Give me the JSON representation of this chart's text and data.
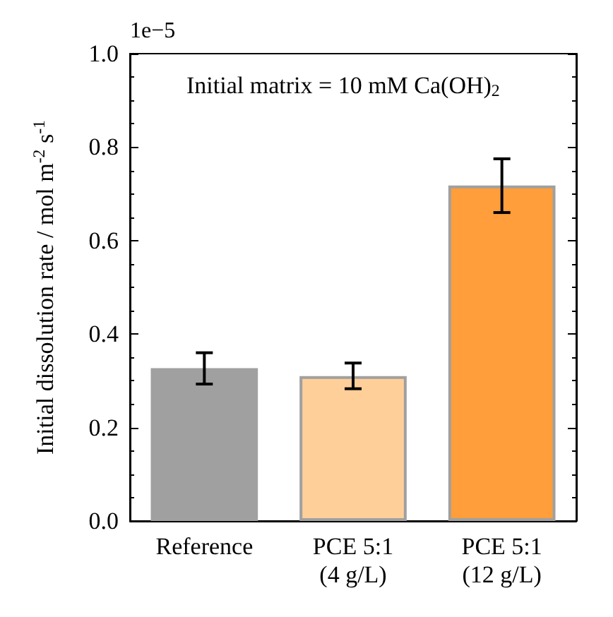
{
  "chart_data": {
    "type": "bar",
    "ylabel": "Initial dissolution rate / mol m$^{-2}$ s$^{-1}$",
    "annotations": [
      "1e−5",
      "Initial matrix = 10 mM Ca(OH)$_{2}$"
    ],
    "categories": [
      "Reference",
      "PCE 5:1\n(4 g/L)",
      "PCE 5:1\n(12 g/L)"
    ],
    "values": [
      0.327,
      0.31,
      0.718
    ],
    "colors": [
      "#a0a0a0",
      "#ffcf99",
      "#ff9e3a"
    ],
    "errors": [
      [
        0.293,
        0.36
      ],
      [
        0.283,
        0.338
      ],
      [
        0.66,
        0.775
      ]
    ],
    "ylim": [
      0,
      1
    ],
    "yticks": [
      {
        "value": 0,
        "label": "0.0"
      },
      {
        "value": 0.2,
        "label": "0.2"
      },
      {
        "value": 0.4,
        "label": "0.4"
      },
      {
        "value": 0.6,
        "label": "0.6"
      },
      {
        "value": 0.8,
        "label": "0.8"
      },
      {
        "value": 1,
        "label": "1.0"
      }
    ],
    "grid": false
  }
}
